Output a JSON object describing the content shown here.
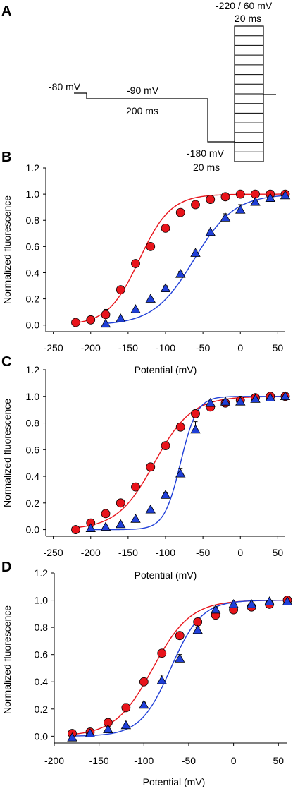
{
  "panel_labels": [
    "A",
    "B",
    "C",
    "D"
  ],
  "protocol": {
    "labels": {
      "hold": "-80 mV",
      "pre": "-90 mV",
      "pre_dur": "200 ms",
      "hyper": "-180 mV",
      "hyper_dur": "20 ms",
      "test": "-220 / 60 mV",
      "test_dur": "20 ms"
    }
  },
  "chart_data": [
    {
      "panel": "B",
      "type": "scatter",
      "xlabel": "Potential (mV)",
      "ylabel": "Normalized fluorescence",
      "xlim": [
        -260,
        60
      ],
      "ylim": [
        -0.05,
        1.2
      ],
      "xticks": [
        -250,
        -200,
        -150,
        -100,
        -50,
        0,
        50
      ],
      "yticks": [
        0.0,
        0.2,
        0.4,
        0.6,
        0.8,
        1.0,
        1.2
      ],
      "series": [
        {
          "marker": "circle",
          "color": "#e8141b",
          "x": [
            -220,
            -200,
            -180,
            -160,
            -140,
            -120,
            -100,
            -80,
            -60,
            -40,
            -20,
            0,
            20,
            40,
            60
          ],
          "y": [
            0.02,
            0.04,
            0.08,
            0.27,
            0.47,
            0.6,
            0.74,
            0.86,
            0.92,
            0.96,
            0.98,
            1.0,
            1.0,
            1.0,
            1.0
          ],
          "err": [
            0,
            0.02,
            0.04,
            0,
            0,
            0,
            0,
            0,
            0,
            0,
            0,
            0,
            0,
            0,
            0
          ],
          "fit": {
            "vhalf": -135,
            "k": 21
          }
        },
        {
          "marker": "triangle",
          "color": "#1f3fd8",
          "x": [
            -180,
            -160,
            -140,
            -120,
            -100,
            -80,
            -60,
            -40,
            -20,
            0,
            20,
            40,
            60
          ],
          "y": [
            0.01,
            0.05,
            0.12,
            0.2,
            0.28,
            0.39,
            0.55,
            0.71,
            0.82,
            0.88,
            0.94,
            0.97,
            0.99
          ],
          "err": [
            0,
            0,
            0,
            0.01,
            0.02,
            0.02,
            0.02,
            0.04,
            0.03,
            0.04,
            0.01,
            0,
            0
          ],
          "fit": {
            "vhalf": -62,
            "k": 27
          }
        }
      ]
    },
    {
      "panel": "C",
      "type": "scatter",
      "xlabel": "Potential (mV)",
      "ylabel": "Normalized fluorescence",
      "xlim": [
        -260,
        60
      ],
      "ylim": [
        -0.05,
        1.2
      ],
      "xticks": [
        -250,
        -200,
        -150,
        -100,
        -50,
        0,
        50
      ],
      "yticks": [
        0.0,
        0.2,
        0.4,
        0.6,
        0.8,
        1.0,
        1.2
      ],
      "series": [
        {
          "marker": "circle",
          "color": "#e8141b",
          "x": [
            -220,
            -200,
            -180,
            -160,
            -140,
            -120,
            -100,
            -80,
            -60,
            -40,
            -20,
            0,
            20,
            40,
            60
          ],
          "y": [
            0.0,
            0.05,
            0.12,
            0.2,
            0.32,
            0.47,
            0.63,
            0.77,
            0.87,
            0.92,
            0.95,
            0.97,
            0.99,
            1.0,
            1.0
          ],
          "err": [
            0,
            0,
            0,
            0,
            0,
            0,
            0,
            0,
            0,
            0,
            0,
            0,
            0,
            0,
            0
          ],
          "fit": {
            "vhalf": -115,
            "k": 25
          }
        },
        {
          "marker": "triangle",
          "color": "#1f3fd8",
          "x": [
            -200,
            -180,
            -160,
            -140,
            -120,
            -100,
            -80,
            -60,
            -40,
            -20,
            0,
            20,
            40,
            60
          ],
          "y": [
            0.01,
            0.02,
            0.04,
            0.08,
            0.15,
            0.26,
            0.42,
            0.75,
            0.95,
            0.96,
            0.96,
            0.98,
            0.99,
            1.0
          ],
          "err": [
            0,
            0,
            0,
            0,
            0.01,
            0.02,
            0.04,
            0.06,
            0.01,
            0.02,
            0.02,
            0.01,
            0,
            0
          ],
          "fit": {
            "vhalf": -80,
            "k": 11
          }
        }
      ]
    },
    {
      "panel": "D",
      "type": "scatter",
      "xlabel": "Potential (mV)",
      "ylabel": "Normalized fluorescence",
      "xlim": [
        -200,
        60
      ],
      "ylim": [
        -0.05,
        1.2
      ],
      "xticks": [
        -200,
        -150,
        -100,
        -50,
        0,
        50
      ],
      "yticks": [
        0.0,
        0.2,
        0.4,
        0.6,
        0.8,
        1.0,
        1.2
      ],
      "series": [
        {
          "marker": "circle",
          "color": "#e8141b",
          "x": [
            -180,
            -160,
            -140,
            -120,
            -100,
            -80,
            -60,
            -40,
            -20,
            0,
            20,
            40,
            60
          ],
          "y": [
            0.02,
            0.03,
            0.1,
            0.21,
            0.4,
            0.61,
            0.74,
            0.84,
            0.89,
            0.93,
            0.95,
            0.97,
            1.0
          ],
          "err": [
            0,
            0,
            0,
            0.03,
            0,
            0,
            0,
            0,
            0,
            0,
            0,
            0,
            0
          ],
          "fit": {
            "vhalf": -90,
            "k": 21
          }
        },
        {
          "marker": "triangle",
          "color": "#1f3fd8",
          "x": [
            -180,
            -160,
            -140,
            -120,
            -100,
            -80,
            -60,
            -40,
            -20,
            0,
            20,
            40,
            60
          ],
          "y": [
            -0.01,
            0.02,
            0.05,
            0.08,
            0.23,
            0.41,
            0.57,
            0.78,
            0.93,
            0.97,
            0.97,
            0.99,
            0.99
          ],
          "err": [
            0,
            0,
            0,
            0,
            0.02,
            0.04,
            0.03,
            0.02,
            0.02,
            0,
            0,
            0,
            0
          ],
          "fit": {
            "vhalf": -70,
            "k": 17
          }
        }
      ]
    }
  ]
}
